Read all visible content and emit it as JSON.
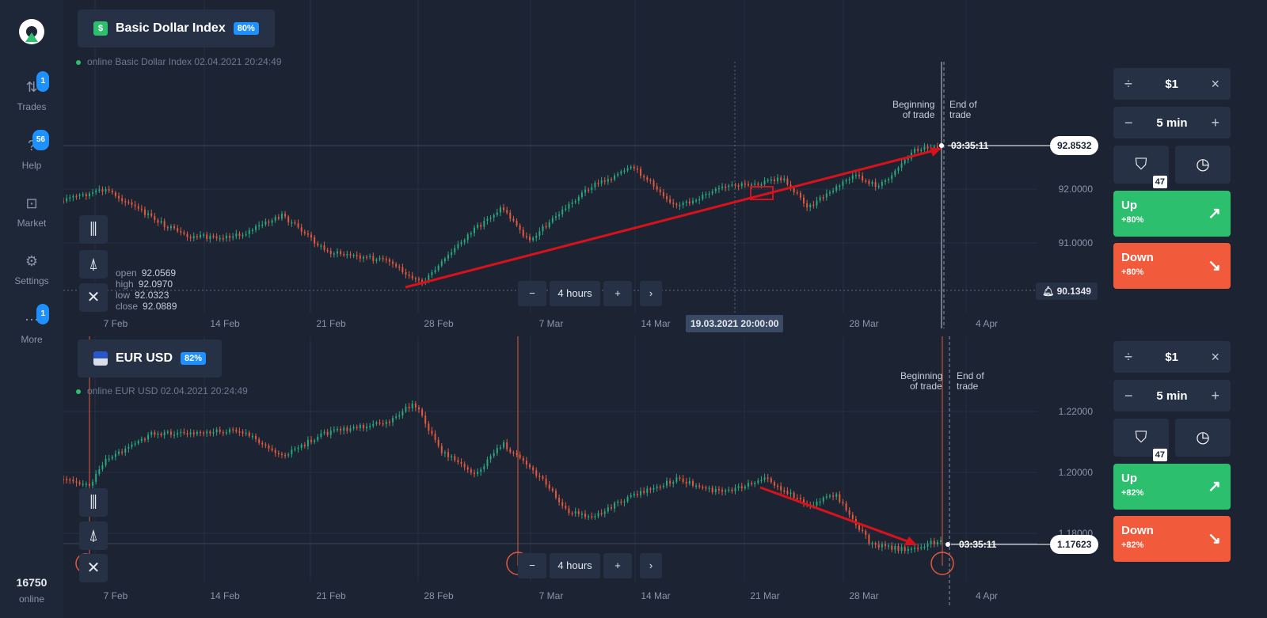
{
  "sidebar": {
    "items": [
      {
        "label": "Trades",
        "icon": "trades-icon",
        "badge": "1"
      },
      {
        "label": "Help",
        "icon": "help-icon",
        "badge": "56"
      },
      {
        "label": "Market",
        "icon": "market-icon",
        "badge": ""
      },
      {
        "label": "Settings",
        "icon": "gear-icon",
        "badge": ""
      },
      {
        "label": "More",
        "icon": "more-icon",
        "badge": "1"
      }
    ],
    "online_count": "16750",
    "online_label": "online"
  },
  "top_chart": {
    "asset_name": "Basic Dollar Index",
    "asset_icon_glyph": "$",
    "payout": "80%",
    "online_text": "online Basic Dollar Index 02.04.2021 20:24:49",
    "ohlc": {
      "open_label": "open",
      "open": "92.0569",
      "high_label": "high",
      "high": "92.0970",
      "low_label": "low",
      "low": "92.0323",
      "close_label": "close",
      "close": "92.0889"
    },
    "y_ticks": [
      "92.0000",
      "91.0000"
    ],
    "x_ticks": [
      "7 Feb",
      "14 Feb",
      "21 Feb",
      "28 Feb",
      "7 Mar",
      "14 Mar",
      "21 Mar",
      "28 Mar",
      "4 Apr"
    ],
    "timeframe": {
      "minus": "−",
      "value": "4 hours",
      "plus": "+",
      "next": "›"
    },
    "crosshair_date": "19.03.2021 20:00:00",
    "current_price": "92.8532",
    "alert_price": "90.1349",
    "timer": "03:35:11",
    "beginning_label_1": "Beginning",
    "beginning_label_2": "of trade",
    "end_label_1": "End of",
    "end_label_2": "trade",
    "arrow_color": "#d8121b"
  },
  "bottom_chart": {
    "asset_name": "EUR USD",
    "payout": "82%",
    "online_text": "online EUR USD 02.04.2021 20:24:49",
    "y_ticks": [
      "1.22000",
      "1.20000",
      "1.18000"
    ],
    "x_ticks": [
      "7 Feb",
      "14 Feb",
      "21 Feb",
      "28 Feb",
      "7 Mar",
      "14 Mar",
      "21 Mar",
      "28 Mar",
      "4 Apr"
    ],
    "timeframe": {
      "minus": "−",
      "value": "4 hours",
      "plus": "+",
      "next": "›"
    },
    "current_price": "1.17623",
    "timer": "03:35:11",
    "beginning_label_1": "Beginning",
    "beginning_label_2": "of trade",
    "end_label_1": "End of",
    "end_label_2": "trade",
    "arrow_color": "#d8121b"
  },
  "trade_panel_top": {
    "amount_prefix": "÷",
    "amount": "$1",
    "amount_close": "×",
    "time_minus": "−",
    "time": "5 min",
    "time_plus": "+",
    "shield_count": "47",
    "up_label": "Up",
    "up_pct": "+80%",
    "down_label": "Down",
    "down_pct": "+80%"
  },
  "trade_panel_bottom": {
    "amount_prefix": "÷",
    "amount": "$1",
    "amount_close": "×",
    "time_minus": "−",
    "time": "5 min",
    "time_plus": "+",
    "shield_count": "47",
    "up_label": "Up",
    "up_pct": "+82%",
    "down_label": "Down",
    "down_pct": "+82%"
  },
  "colors": {
    "bull": "#2aa77c",
    "bear": "#e2583e",
    "grid": "#253045",
    "background": "#1c2434"
  }
}
